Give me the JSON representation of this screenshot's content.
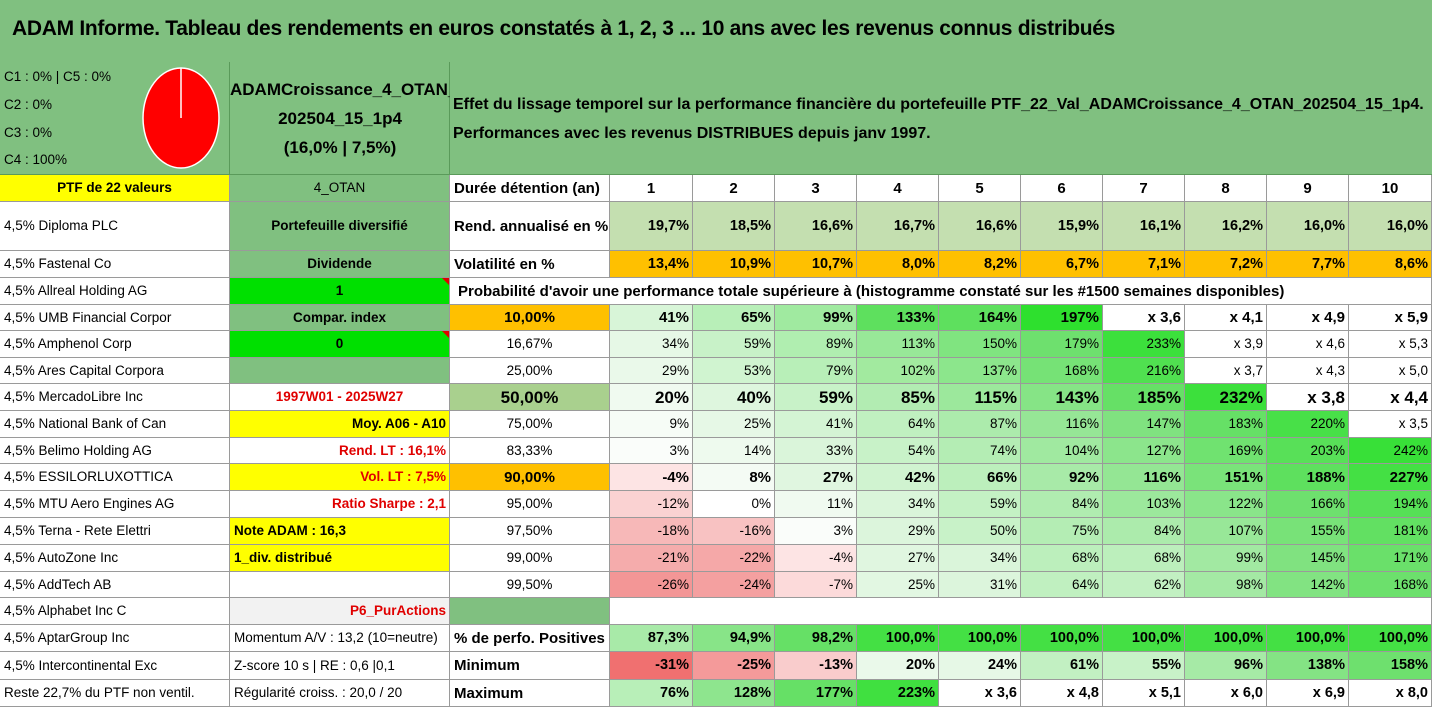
{
  "title": "ADAM Informe. Tableau des rendements en euros constatés à 1, 2, 3 ... 10 ans avec les revenus connus distribués",
  "composition": [
    "C1 : 0% | C5 : 0%",
    "C2 : 0%",
    "C3 : 0%",
    "C4 : 100%"
  ],
  "composition_pie": {
    "C4": 100,
    "color": "#ff0000"
  },
  "ptf_name": [
    "ADAMCroissance_4_OTAN_",
    "202504_15_1p4",
    "(16,0% | 7,5%)"
  ],
  "description": [
    "Effet du lissage temporel sur la performance financière du portefeuille PTF_22_Val_ADAMCroissance_4_OTAN_202504_15_1p4.",
    "Performances avec les revenus DISTRIBUES depuis janv 1997."
  ],
  "holdings_header": "PTF de 22 valeurs",
  "holdings": [
    "4,5% Diploma PLC",
    "4,5% Fastenal Co",
    "4,5% Allreal Holding AG",
    "4,5% UMB Financial Corpor",
    "4,5% Amphenol Corp",
    "4,5% Ares Capital Corpora",
    "4,5% MercadoLibre Inc",
    "4,5% National Bank of Can",
    "4,5% Belimo Holding AG",
    "4,5% ESSILORLUXOTTICA",
    "4,5% MTU Aero Engines AG",
    "4,5% Terna - Rete Elettri",
    "4,5% AutoZone Inc",
    "4,5% AddTech AB",
    "4,5% Alphabet Inc C",
    "4,5% AptarGroup Inc",
    "4,5% Intercontinental Exc",
    "Reste 22,7% du PTF non ventil."
  ],
  "info_col": [
    {
      "text": "4_OTAN",
      "bg": "#80c080",
      "align": "c"
    },
    {
      "text": "Portefeuille diversifié",
      "bg": "#80c080",
      "align": "c",
      "bold": true
    },
    {
      "text": "Dividende",
      "bg": "#80c080",
      "align": "c",
      "bold": true
    },
    {
      "text": "1",
      "bg": "#00e000",
      "align": "c",
      "bold": true,
      "mark": true
    },
    {
      "text": "Compar. index",
      "bg": "#80c080",
      "align": "c",
      "bold": true
    },
    {
      "text": "0",
      "bg": "#00e000",
      "align": "c",
      "bold": true,
      "mark": true
    },
    {
      "text": "",
      "bg": "#80c080",
      "align": "c"
    },
    {
      "text": "1997W01 - 2025W27",
      "bg": "#ffffff",
      "align": "c",
      "bold": true,
      "red": true
    },
    {
      "text": "Moy. A06 - A10",
      "bg": "#ffff00",
      "align": "r",
      "bold": true
    },
    {
      "text": "Rend. LT : 16,1%",
      "bg": "#ffffff",
      "align": "r",
      "bold": true,
      "red": true
    },
    {
      "text": "Vol. LT : 7,5%",
      "bg": "#ffff00",
      "align": "r",
      "bold": true,
      "red": true
    },
    {
      "text": "Ratio Sharpe : 2,1",
      "bg": "#ffffff",
      "align": "r",
      "bold": true,
      "red": true
    },
    {
      "text": "Note ADAM : 16,3",
      "bg": "#ffff00",
      "align": "l",
      "bold": true
    },
    {
      "text": "1_div. distribué",
      "bg": "#ffff00",
      "align": "l",
      "bold": true
    },
    {
      "text": "",
      "bg": "#ffffff",
      "align": "c"
    },
    {
      "text": "P6_PurActions",
      "bg": "#f2f2f2",
      "align": "r",
      "bold": true,
      "red": true
    },
    {
      "text": "Momentum A/V : 13,2 (10=neutre)",
      "bg": "#ffffff",
      "align": "l"
    },
    {
      "text": "Z-score 10 s | RE : 0,6 |0,1",
      "bg": "#ffffff",
      "align": "l"
    },
    {
      "text": "Régularité croiss. : 20,0 / 20",
      "bg": "#ffffff",
      "align": "l"
    }
  ],
  "years_label": "Durée détention (an)",
  "years": [
    "1",
    "2",
    "3",
    "4",
    "5",
    "6",
    "7",
    "8",
    "9",
    "10"
  ],
  "annualized": {
    "label": "Rend. annualisé en %",
    "values": [
      "19,7%",
      "18,5%",
      "16,6%",
      "16,7%",
      "16,6%",
      "15,9%",
      "16,1%",
      "16,2%",
      "16,0%",
      "16,0%"
    ],
    "bg": "#c4dfb0"
  },
  "volatility": {
    "label": "Volatilité en %",
    "values": [
      "13,4%",
      "10,9%",
      "10,7%",
      "8,0%",
      "8,2%",
      "6,7%",
      "7,1%",
      "7,2%",
      "7,7%",
      "8,6%"
    ],
    "bg": "#ffc000"
  },
  "prob_title": "Probabilité d'avoir une performance totale supérieure à (histogramme constaté sur les #1500 semaines disponibles)",
  "prob_rows": [
    {
      "p": "10,00%",
      "p_bg": "#ffc000",
      "bold": true,
      "v": [
        "41%",
        "65%",
        "99%",
        "133%",
        "164%",
        "197%",
        "x 3,6",
        "x 4,1",
        "x 4,9",
        "x 5,9"
      ],
      "bg": [
        "#d8f5d8",
        "#b8efb8",
        "#a0eaa0",
        "#5ee05e",
        "#5ee05e",
        "#2ee02e",
        "#ffffff",
        "#ffffff",
        "#ffffff",
        "#ffffff"
      ]
    },
    {
      "p": "16,67%",
      "p_bg": "#ffffff",
      "bold": false,
      "v": [
        "34%",
        "59%",
        "89%",
        "113%",
        "150%",
        "179%",
        "233%",
        "x 3,9",
        "x 4,6",
        "x 5,3"
      ],
      "bg": [
        "#e6f8e6",
        "#c8f2c8",
        "#b0eeb0",
        "#98e898",
        "#80e480",
        "#6ee06e",
        "#3ce03c",
        "#ffffff",
        "#ffffff",
        "#ffffff"
      ]
    },
    {
      "p": "25,00%",
      "p_bg": "#ffffff",
      "bold": false,
      "v": [
        "29%",
        "53%",
        "79%",
        "102%",
        "137%",
        "168%",
        "216%",
        "x 3,7",
        "x 4,3",
        "x 5,0"
      ],
      "bg": [
        "#eaf9ea",
        "#d0f4d0",
        "#b8efb8",
        "#a2ea9f",
        "#8ce68c",
        "#76e276",
        "#50e050",
        "#ffffff",
        "#ffffff",
        "#ffffff"
      ]
    },
    {
      "p": "50,00%",
      "p_bg": "#a9d08e",
      "bold": true,
      "big": true,
      "v": [
        "20%",
        "40%",
        "59%",
        "85%",
        "115%",
        "143%",
        "185%",
        "232%",
        "x 3,8",
        "x 4,4"
      ],
      "bg": [
        "#f0faf0",
        "#def6de",
        "#c8f2c8",
        "#b2ecb2",
        "#9ce89c",
        "#86e486",
        "#66e066",
        "#3ce03c",
        "#ffffff",
        "#ffffff"
      ]
    },
    {
      "p": "75,00%",
      "p_bg": "#ffffff",
      "bold": false,
      "v": [
        "9%",
        "25%",
        "41%",
        "64%",
        "87%",
        "116%",
        "147%",
        "183%",
        "220%",
        "x 3,5"
      ],
      "bg": [
        "#f6fcf6",
        "#e6f8e6",
        "#d4f4d4",
        "#c0f0c0",
        "#acebac",
        "#96e696",
        "#80e280",
        "#66e066",
        "#48e048",
        "#ffffff"
      ]
    },
    {
      "p": "83,33%",
      "p_bg": "#ffffff",
      "bold": false,
      "v": [
        "3%",
        "14%",
        "33%",
        "54%",
        "74%",
        "104%",
        "127%",
        "169%",
        "203%",
        "242%"
      ],
      "bg": [
        "#fafdfa",
        "#eefaee",
        "#daf5da",
        "#c8f2c8",
        "#b4edb4",
        "#a0e9a0",
        "#8ce58c",
        "#70e270",
        "#58e058",
        "#38e038"
      ]
    },
    {
      "p": "90,00%",
      "p_bg": "#ffc000",
      "bold": true,
      "v": [
        "-4%",
        "8%",
        "27%",
        "42%",
        "66%",
        "92%",
        "116%",
        "151%",
        "188%",
        "227%"
      ],
      "bg": [
        "#fde4e4",
        "#f4fbf4",
        "#e0f6e0",
        "#d0f3d0",
        "#bcefbc",
        "#a8eaa8",
        "#94e694",
        "#7ae37a",
        "#5ee05e",
        "#44e044"
      ]
    },
    {
      "p": "95,00%",
      "p_bg": "#ffffff",
      "bold": false,
      "v": [
        "-12%",
        "0%",
        "11%",
        "34%",
        "59%",
        "84%",
        "103%",
        "122%",
        "166%",
        "194%"
      ],
      "bg": [
        "#fad2d2",
        "#ffffff",
        "#f0faf0",
        "#daf5da",
        "#c4f1c4",
        "#b0ecb0",
        "#9ce89c",
        "#8ae58a",
        "#6ee06e",
        "#56e056"
      ]
    },
    {
      "p": "97,50%",
      "p_bg": "#ffffff",
      "bold": false,
      "v": [
        "-18%",
        "-16%",
        "3%",
        "29%",
        "50%",
        "75%",
        "84%",
        "107%",
        "155%",
        "181%"
      ],
      "bg": [
        "#f7b8b8",
        "#f8c2c2",
        "#fafdfa",
        "#dcf5dc",
        "#c8f2c8",
        "#b4edb4",
        "#acebac",
        "#98e798",
        "#78e278",
        "#62e062"
      ]
    },
    {
      "p": "99,00%",
      "p_bg": "#ffffff",
      "bold": false,
      "v": [
        "-21%",
        "-22%",
        "-4%",
        "27%",
        "34%",
        "68%",
        "68%",
        "99%",
        "145%",
        "171%"
      ],
      "bg": [
        "#f5acac",
        "#f5a8a8",
        "#fde4e4",
        "#e0f6e0",
        "#daf5da",
        "#bcefbc",
        "#bcefbc",
        "#a2e9a2",
        "#80e280",
        "#6ae06a"
      ]
    },
    {
      "p": "99,50%",
      "p_bg": "#ffffff",
      "bold": false,
      "v": [
        "-26%",
        "-24%",
        "-7%",
        "25%",
        "31%",
        "64%",
        "62%",
        "98%",
        "142%",
        "168%"
      ],
      "bg": [
        "#f39696",
        "#f4a0a0",
        "#fcdada",
        "#e2f7e2",
        "#dcf5dc",
        "#c0f0c0",
        "#c2f0c2",
        "#a4e9a4",
        "#82e382",
        "#6ce06c"
      ]
    }
  ],
  "positives": {
    "label": "% de perfo. Positives",
    "values": [
      "87,3%",
      "94,9%",
      "98,2%",
      "100,0%",
      "100,0%",
      "100,0%",
      "100,0%",
      "100,0%",
      "100,0%",
      "100,0%"
    ],
    "bg": [
      "#a8eaa8",
      "#88e488",
      "#66e066",
      "#44e044",
      "#44e044",
      "#44e044",
      "#44e044",
      "#44e044",
      "#44e044",
      "#44e044"
    ]
  },
  "minimum": {
    "label": "Minimum",
    "values": [
      "-31%",
      "-25%",
      "-13%",
      "20%",
      "24%",
      "61%",
      "55%",
      "96%",
      "138%",
      "158%"
    ],
    "bg": [
      "#f07070",
      "#f49a9a",
      "#f9cccc",
      "#eaf9ea",
      "#e6f8e6",
      "#c2f0c2",
      "#c8f2c8",
      "#a6eaa6",
      "#84e384",
      "#6ee06e"
    ]
  },
  "maximum": {
    "label": "Maximum",
    "values": [
      "76%",
      "128%",
      "177%",
      "223%",
      "x 3,6",
      "x 4,8",
      "x 5,1",
      "x 6,0",
      "x 6,9",
      "x 8,0"
    ],
    "bg": [
      "#b8efb8",
      "#8ee58e",
      "#66e066",
      "#40e040",
      "#ffffff",
      "#ffffff",
      "#ffffff",
      "#ffffff",
      "#ffffff",
      "#ffffff"
    ]
  }
}
